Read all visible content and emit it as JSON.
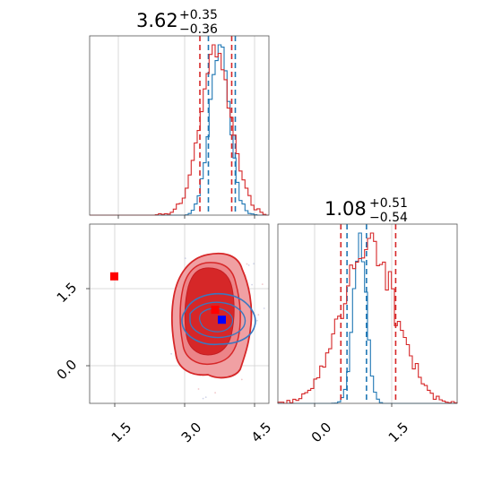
{
  "chart_data": [
    {
      "type": "histogram",
      "panel": "top-left",
      "title": {
        "value": "3.62",
        "plus": "+0.35",
        "minus": "−0.36"
      },
      "xlim": [
        0.8,
        4.8
      ],
      "grid": true,
      "series": [
        {
          "color": "#1f77b4",
          "mean": 3.7,
          "sd": 0.22,
          "quantiles": [
            3.45,
            4.05
          ]
        },
        {
          "color": "#d62728",
          "mean": 3.62,
          "sd": 0.35,
          "quantiles": [
            3.26,
            3.97
          ]
        }
      ]
    },
    {
      "type": "scatter-contour",
      "panel": "bottom-left",
      "xlim": [
        0.8,
        4.8
      ],
      "ylim": [
        -0.8,
        2.8
      ],
      "xticks": [
        "1.5",
        "3.0",
        "4.5"
      ],
      "yticks": [
        "0.0",
        "1.5"
      ],
      "grid": true,
      "markers": [
        {
          "color": "#ff0000",
          "shape": "square",
          "x": 1.35,
          "y": 1.75
        },
        {
          "color": "#ff0000",
          "shape": "square",
          "x": 3.6,
          "y": 1.08
        },
        {
          "color": "#0000ff",
          "shape": "square",
          "x": 3.75,
          "y": 0.88
        }
      ],
      "contour_colors": {
        "fill_light": "#f0a0a3",
        "fill_dark": "#d62728",
        "line_red": "#d62728",
        "line_blue": "#3a78c0"
      }
    },
    {
      "type": "histogram",
      "panel": "bottom-right",
      "title": {
        "value": "1.08",
        "plus": "+0.51",
        "minus": "−0.54"
      },
      "xlim": [
        -0.7,
        2.8
      ],
      "xticks": [
        "0.0",
        "1.5"
      ],
      "grid": true,
      "series": [
        {
          "color": "#1f77b4",
          "mean": 0.9,
          "sd": 0.13,
          "quantiles": [
            0.65,
            1.03
          ]
        },
        {
          "color": "#d62728",
          "mean": 1.08,
          "sd": 0.52,
          "quantiles": [
            0.53,
            1.6
          ]
        }
      ]
    }
  ]
}
